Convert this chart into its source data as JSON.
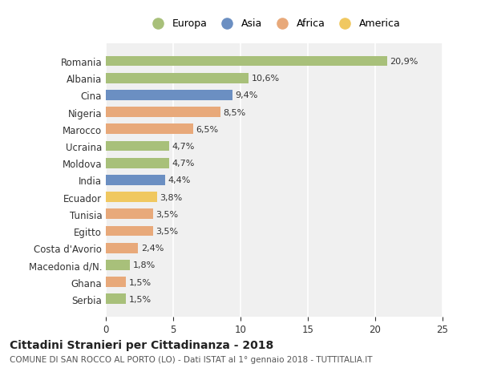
{
  "countries": [
    "Romania",
    "Albania",
    "Cina",
    "Nigeria",
    "Marocco",
    "Ucraina",
    "Moldova",
    "India",
    "Ecuador",
    "Tunisia",
    "Egitto",
    "Costa d'Avorio",
    "Macedonia d/N.",
    "Ghana",
    "Serbia"
  ],
  "values": [
    20.9,
    10.6,
    9.4,
    8.5,
    6.5,
    4.7,
    4.7,
    4.4,
    3.8,
    3.5,
    3.5,
    2.4,
    1.8,
    1.5,
    1.5
  ],
  "labels": [
    "20,9%",
    "10,6%",
    "9,4%",
    "8,5%",
    "6,5%",
    "4,7%",
    "4,7%",
    "4,4%",
    "3,8%",
    "3,5%",
    "3,5%",
    "2,4%",
    "1,8%",
    "1,5%",
    "1,5%"
  ],
  "continents": [
    "Europa",
    "Europa",
    "Asia",
    "Africa",
    "Africa",
    "Europa",
    "Europa",
    "Asia",
    "America",
    "Africa",
    "Africa",
    "Africa",
    "Europa",
    "Africa",
    "Europa"
  ],
  "colors": {
    "Europa": "#a8c07a",
    "Asia": "#6b8fc2",
    "Africa": "#e8a97a",
    "America": "#f0c860"
  },
  "legend_order": [
    "Europa",
    "Asia",
    "Africa",
    "America"
  ],
  "xlim": [
    0,
    25
  ],
  "xticks": [
    0,
    5,
    10,
    15,
    20,
    25
  ],
  "title": "Cittadini Stranieri per Cittadinanza - 2018",
  "subtitle": "COMUNE DI SAN ROCCO AL PORTO (LO) - Dati ISTAT al 1° gennaio 2018 - TUTTITALIA.IT",
  "background_color": "#ffffff",
  "plot_bg_color": "#f0f0f0",
  "grid_color": "#ffffff",
  "bar_height": 0.6
}
